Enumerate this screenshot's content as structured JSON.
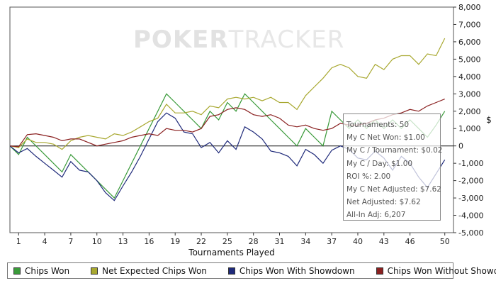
{
  "chart_data": {
    "type": "line",
    "xlabel": "Tournaments Played",
    "ylabel": "$",
    "xlim": [
      0,
      51
    ],
    "ylim": [
      -5000,
      8000
    ],
    "x_ticks": [
      1,
      4,
      7,
      10,
      13,
      16,
      19,
      22,
      25,
      28,
      31,
      34,
      37,
      40,
      43,
      46,
      50
    ],
    "y_ticks": [
      -5000,
      -4000,
      -3000,
      -2000,
      -1000,
      0,
      1000,
      2000,
      3000,
      4000,
      5000,
      6000,
      7000,
      8000
    ],
    "y_tick_labels": [
      "-5,000",
      "-4,000",
      "-3,000",
      "-2,000",
      "-1,000",
      "0",
      "1,000",
      "2,000",
      "3,000",
      "4,000",
      "5,000",
      "6,000",
      "7,000",
      "8,000"
    ],
    "x": [
      0,
      1,
      2,
      3,
      4,
      5,
      6,
      7,
      8,
      9,
      10,
      11,
      12,
      13,
      14,
      15,
      16,
      17,
      18,
      19,
      20,
      21,
      22,
      23,
      24,
      25,
      26,
      27,
      28,
      29,
      30,
      31,
      32,
      33,
      34,
      35,
      36,
      37,
      38,
      39,
      40,
      41,
      42,
      43,
      44,
      45,
      46,
      47,
      48,
      49,
      50
    ],
    "grid": false,
    "legend_position": "bottom",
    "series": [
      {
        "name": "Chips Won",
        "color": "#3a9a3a",
        "values": [
          0,
          -500,
          500,
          0,
          -500,
          -1000,
          -1500,
          -500,
          -1000,
          -1500,
          -2000,
          -2500,
          -3000,
          -2000,
          -1000,
          0,
          1000,
          2000,
          3000,
          2500,
          2000,
          1500,
          1000,
          2000,
          1500,
          2500,
          2000,
          3000,
          2500,
          2000,
          1500,
          1000,
          500,
          0,
          1000,
          500,
          0,
          2000,
          1500,
          1000,
          1500,
          1000,
          1500,
          1000,
          1500,
          1000,
          1500,
          1000,
          500,
          1200,
          2000
        ]
      },
      {
        "name": "Net Expected Chips Won",
        "color": "#a8a830",
        "values": [
          0,
          -100,
          400,
          200,
          200,
          100,
          -200,
          300,
          500,
          600,
          500,
          400,
          700,
          600,
          800,
          1100,
          1400,
          1600,
          2400,
          1900,
          1900,
          2000,
          1800,
          2300,
          2200,
          2700,
          2800,
          2700,
          2800,
          2600,
          2800,
          2500,
          2500,
          2100,
          2900,
          3400,
          3900,
          4500,
          4700,
          4500,
          4000,
          3900,
          4700,
          4400,
          5000,
          5200,
          5200,
          4700,
          5300,
          5200,
          6200
        ]
      },
      {
        "name": "Chips Won With Showdown",
        "color": "#1f2a7a",
        "values": [
          0,
          -400,
          -150,
          -600,
          -1000,
          -1400,
          -1800,
          -900,
          -1400,
          -1500,
          -2000,
          -2700,
          -3150,
          -2300,
          -1500,
          -600,
          400,
          1400,
          1900,
          1600,
          800,
          700,
          -100,
          200,
          -400,
          300,
          -200,
          1100,
          800,
          400,
          -300,
          -400,
          -600,
          -1150,
          -200,
          -500,
          -1000,
          -250,
          0,
          -200,
          -700,
          -800,
          -300,
          -700,
          -1400,
          -600,
          -1000,
          -1800,
          -2400,
          -1600,
          -800
        ]
      },
      {
        "name": "Chips Won Without Showdown",
        "color": "#8a2020",
        "values": [
          0,
          -50,
          650,
          700,
          600,
          500,
          300,
          400,
          400,
          200,
          0,
          100,
          200,
          300,
          500,
          600,
          700,
          600,
          1000,
          900,
          900,
          800,
          1000,
          1700,
          1800,
          2100,
          2200,
          2100,
          1800,
          1700,
          1800,
          1600,
          1200,
          1100,
          1200,
          1000,
          900,
          1000,
          1300,
          1200,
          1200,
          1300,
          1500,
          1600,
          1800,
          1900,
          2100,
          2000,
          2300,
          2500,
          2700
        ]
      }
    ]
  },
  "tooltip": {
    "lines": [
      "Tournaments: 50",
      "My C Net Won: $1.00",
      "My C / Tournament: $0.02",
      "My C / Day: $1.00",
      "ROI %: 2.00",
      "My C Net Adjusted: $7.62",
      "Net Adjusted: $7.62",
      "All-In Adj: 6,207"
    ]
  },
  "watermark": {
    "part1": "POKER",
    "part2": "TRACKER"
  }
}
